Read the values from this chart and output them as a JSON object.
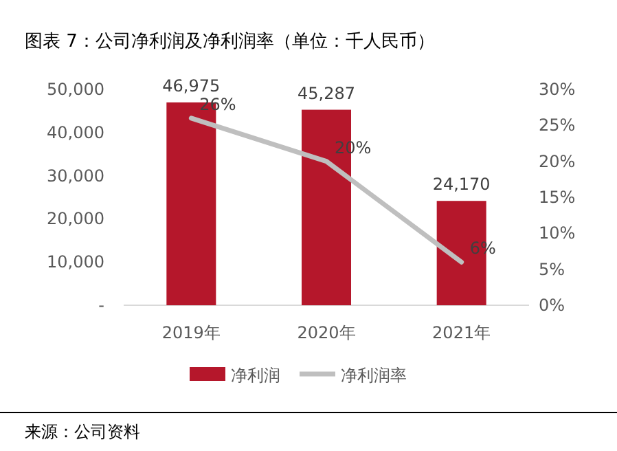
{
  "chart_data": {
    "type": "bar",
    "title": "图表 7：公司净利润及净利润率（单位：千人民币）",
    "categories": [
      "2019年",
      "2020年",
      "2021年"
    ],
    "series": [
      {
        "name": "净利润",
        "color": "#b5172b",
        "values": [
          46975,
          45287,
          24170
        ],
        "value_labels": [
          "46,975",
          "45,287",
          "24,170"
        ]
      },
      {
        "name": "净利润率",
        "type": "line",
        "axis": "y2",
        "color": "#bfbfbf",
        "values": [
          26,
          20,
          6
        ],
        "value_labels": [
          "26%",
          "20%",
          "6%"
        ]
      }
    ],
    "ylim": [
      0,
      50000
    ],
    "yticks": [
      {
        "value": 0,
        "label": "-"
      },
      {
        "value": 10000,
        "label": "10,000"
      },
      {
        "value": 20000,
        "label": "20,000"
      },
      {
        "value": 30000,
        "label": "30,000"
      },
      {
        "value": 40000,
        "label": "40,000"
      },
      {
        "value": 50000,
        "label": "50,000"
      }
    ],
    "y2lim": [
      0,
      30
    ],
    "y2ticks": [
      {
        "value": 0,
        "label": "0%"
      },
      {
        "value": 5,
        "label": "5%"
      },
      {
        "value": 10,
        "label": "10%"
      },
      {
        "value": 15,
        "label": "15%"
      },
      {
        "value": 20,
        "label": "20%"
      },
      {
        "value": 25,
        "label": "25%"
      },
      {
        "value": 30,
        "label": "30%"
      }
    ],
    "legend": "bottom",
    "annotations": [
      "来源：公司资料"
    ]
  }
}
